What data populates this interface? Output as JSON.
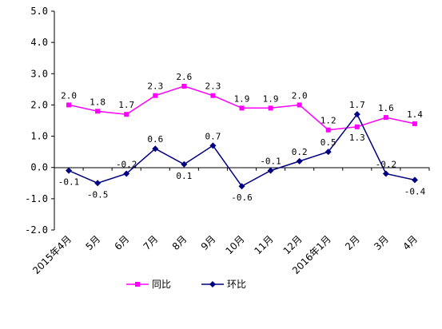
{
  "chart_data": {
    "type": "line",
    "categories": [
      "2015年4月",
      "5月",
      "6月",
      "7月",
      "8月",
      "9月",
      "10月",
      "11月",
      "12月",
      "2016年1月",
      "2月",
      "3月",
      "4月"
    ],
    "ylim": [
      -2.0,
      5.0
    ],
    "yticks": [
      "5.0",
      "4.0",
      "3.0",
      "2.0",
      "1.0",
      "0.0",
      "-1.0",
      "-2.0"
    ],
    "ytick_values": [
      5,
      4,
      3,
      2,
      1,
      0,
      -1,
      -2
    ],
    "grid": false,
    "legend_position": "bottom",
    "series": [
      {
        "name": "同比",
        "color": "#ff00ff",
        "marker": "square",
        "values": [
          2.0,
          1.8,
          1.7,
          2.3,
          2.6,
          2.3,
          1.9,
          1.9,
          2.0,
          1.2,
          1.3,
          1.6,
          1.4
        ],
        "labels": [
          "2.0",
          "1.8",
          "1.7",
          "2.3",
          "2.6",
          "2.3",
          "1.9",
          "1.9",
          "2.0",
          "1.2",
          "1.3",
          "1.6",
          "1.4"
        ]
      },
      {
        "name": "环比",
        "color": "#000080",
        "marker": "diamond",
        "values": [
          -0.1,
          -0.5,
          -0.2,
          0.6,
          0.1,
          0.7,
          -0.6,
          -0.1,
          0.2,
          0.5,
          1.7,
          -0.2,
          -0.4
        ],
        "labels": [
          "-0.1",
          "-0.5",
          "-0.2",
          "0.6",
          "0.1",
          "0.7",
          "-0.6",
          "-0.1",
          "0.2",
          "0.5",
          "1.7",
          "-0.2",
          "-0.4"
        ]
      }
    ]
  }
}
